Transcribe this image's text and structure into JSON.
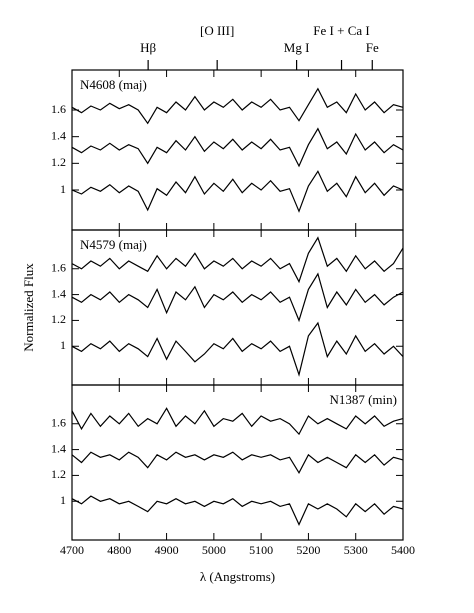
{
  "chart_data": [
    {
      "type": "line",
      "label": "N4608 (maj)",
      "label_corner": "upper left",
      "annotations": [
        {
          "label": "Hβ",
          "x": 4861
        },
        {
          "label": "[O III]",
          "x": 5007
        },
        {
          "label": "Mg I",
          "x": 5175
        },
        {
          "label": "Fe I + Ca I",
          "x": 5270
        },
        {
          "label": "Fe",
          "x": 5335
        }
      ],
      "xlim": [
        4700,
        5400
      ],
      "ylim": [
        0.7,
        1.9
      ],
      "yticks": [
        1,
        1.2,
        1.4,
        1.6
      ],
      "x": [
        4700,
        4720,
        4740,
        4760,
        4780,
        4800,
        4820,
        4840,
        4860,
        4880,
        4900,
        4920,
        4940,
        4960,
        4980,
        5000,
        5020,
        5040,
        5060,
        5080,
        5100,
        5120,
        5140,
        5160,
        5180,
        5200,
        5220,
        5240,
        5260,
        5280,
        5300,
        5320,
        5340,
        5360,
        5380,
        5400
      ],
      "series": [
        {
          "color": "#000000",
          "values": [
            1.62,
            1.58,
            1.63,
            1.6,
            1.65,
            1.61,
            1.64,
            1.6,
            1.5,
            1.62,
            1.58,
            1.66,
            1.6,
            1.7,
            1.6,
            1.66,
            1.62,
            1.68,
            1.6,
            1.66,
            1.62,
            1.68,
            1.6,
            1.62,
            1.52,
            1.64,
            1.76,
            1.62,
            1.66,
            1.58,
            1.72,
            1.6,
            1.66,
            1.58,
            1.64,
            1.62
          ]
        },
        {
          "color": "#000000",
          "values": [
            1.32,
            1.28,
            1.33,
            1.3,
            1.35,
            1.3,
            1.34,
            1.31,
            1.2,
            1.32,
            1.28,
            1.37,
            1.3,
            1.4,
            1.29,
            1.36,
            1.31,
            1.38,
            1.3,
            1.36,
            1.31,
            1.38,
            1.3,
            1.32,
            1.18,
            1.34,
            1.46,
            1.31,
            1.36,
            1.27,
            1.42,
            1.3,
            1.36,
            1.28,
            1.34,
            1.3
          ]
        },
        {
          "color": "#000000",
          "values": [
            1.0,
            0.97,
            1.02,
            0.99,
            1.04,
            0.98,
            1.03,
            0.99,
            0.85,
            1.01,
            0.96,
            1.06,
            0.98,
            1.1,
            0.97,
            1.05,
            0.99,
            1.08,
            0.98,
            1.05,
            1.0,
            1.07,
            0.99,
            1.01,
            0.84,
            1.03,
            1.14,
            0.99,
            1.05,
            0.95,
            1.1,
            0.98,
            1.05,
            0.96,
            1.03,
            1.0
          ]
        }
      ]
    },
    {
      "type": "line",
      "label": "N4579 (maj)",
      "label_corner": "upper left",
      "ylabel": "Normalized Flux",
      "xlim": [
        4700,
        5400
      ],
      "ylim": [
        0.7,
        1.9
      ],
      "yticks": [
        1,
        1.2,
        1.4,
        1.6
      ],
      "x": [
        4700,
        4720,
        4740,
        4760,
        4780,
        4800,
        4820,
        4840,
        4860,
        4880,
        4900,
        4920,
        4940,
        4960,
        4980,
        5000,
        5020,
        5040,
        5060,
        5080,
        5100,
        5120,
        5140,
        5160,
        5180,
        5200,
        5220,
        5240,
        5260,
        5280,
        5300,
        5320,
        5340,
        5360,
        5380,
        5400
      ],
      "series": [
        {
          "color": "#000000",
          "values": [
            1.64,
            1.6,
            1.66,
            1.62,
            1.68,
            1.6,
            1.66,
            1.62,
            1.58,
            1.7,
            1.6,
            1.68,
            1.62,
            1.72,
            1.6,
            1.66,
            1.62,
            1.68,
            1.6,
            1.66,
            1.62,
            1.68,
            1.6,
            1.64,
            1.5,
            1.72,
            1.84,
            1.62,
            1.68,
            1.58,
            1.7,
            1.6,
            1.66,
            1.58,
            1.64,
            1.76
          ]
        },
        {
          "color": "#000000",
          "values": [
            1.38,
            1.34,
            1.4,
            1.36,
            1.42,
            1.34,
            1.4,
            1.36,
            1.3,
            1.44,
            1.26,
            1.42,
            1.36,
            1.46,
            1.3,
            1.4,
            1.36,
            1.42,
            1.34,
            1.4,
            1.36,
            1.42,
            1.34,
            1.38,
            1.2,
            1.44,
            1.56,
            1.3,
            1.42,
            1.32,
            1.44,
            1.34,
            1.4,
            1.32,
            1.38,
            1.42
          ]
        },
        {
          "color": "#000000",
          "values": [
            1.0,
            0.96,
            1.02,
            0.98,
            1.04,
            0.96,
            1.02,
            0.98,
            0.92,
            1.06,
            0.9,
            1.04,
            0.96,
            0.88,
            0.94,
            1.02,
            0.98,
            1.06,
            0.96,
            1.02,
            0.98,
            1.04,
            0.96,
            1.0,
            0.78,
            1.08,
            1.18,
            0.92,
            1.04,
            0.94,
            1.08,
            0.96,
            1.02,
            0.94,
            1.0,
            0.92
          ]
        }
      ]
    },
    {
      "type": "line",
      "label": "N1387 (min)",
      "label_corner": "upper right",
      "xlabel": "λ (Angstroms)",
      "xlim": [
        4700,
        5400
      ],
      "xticks": [
        4700,
        4800,
        4900,
        5000,
        5100,
        5200,
        5300,
        5400
      ],
      "ylim": [
        0.7,
        1.9
      ],
      "yticks": [
        1,
        1.2,
        1.4,
        1.6
      ],
      "x": [
        4700,
        4720,
        4740,
        4760,
        4780,
        4800,
        4820,
        4840,
        4860,
        4880,
        4900,
        4920,
        4940,
        4960,
        4980,
        5000,
        5020,
        5040,
        5060,
        5080,
        5100,
        5120,
        5140,
        5160,
        5180,
        5200,
        5220,
        5240,
        5260,
        5280,
        5300,
        5320,
        5340,
        5360,
        5380,
        5400
      ],
      "series": [
        {
          "color": "#000000",
          "values": [
            1.7,
            1.56,
            1.68,
            1.58,
            1.66,
            1.6,
            1.68,
            1.58,
            1.64,
            1.6,
            1.72,
            1.58,
            1.66,
            1.6,
            1.7,
            1.58,
            1.64,
            1.62,
            1.68,
            1.58,
            1.66,
            1.62,
            1.64,
            1.6,
            1.52,
            1.66,
            1.6,
            1.64,
            1.6,
            1.56,
            1.66,
            1.6,
            1.66,
            1.58,
            1.62,
            1.64
          ]
        },
        {
          "color": "#000000",
          "values": [
            1.36,
            1.3,
            1.38,
            1.34,
            1.36,
            1.32,
            1.38,
            1.34,
            1.26,
            1.36,
            1.32,
            1.38,
            1.34,
            1.36,
            1.32,
            1.36,
            1.34,
            1.38,
            1.32,
            1.36,
            1.34,
            1.36,
            1.32,
            1.34,
            1.22,
            1.36,
            1.3,
            1.34,
            1.3,
            1.26,
            1.36,
            1.3,
            1.36,
            1.28,
            1.34,
            1.32
          ]
        },
        {
          "color": "#000000",
          "values": [
            1.02,
            0.98,
            1.04,
            1.0,
            1.02,
            0.98,
            1.0,
            0.96,
            0.92,
            1.0,
            0.98,
            1.02,
            0.98,
            1.0,
            0.96,
            1.0,
            0.98,
            1.02,
            0.96,
            1.0,
            0.98,
            1.0,
            0.96,
            0.98,
            0.82,
            0.98,
            0.94,
            0.98,
            0.94,
            0.88,
            0.98,
            0.92,
            0.98,
            0.9,
            0.96,
            0.94
          ]
        }
      ]
    }
  ]
}
